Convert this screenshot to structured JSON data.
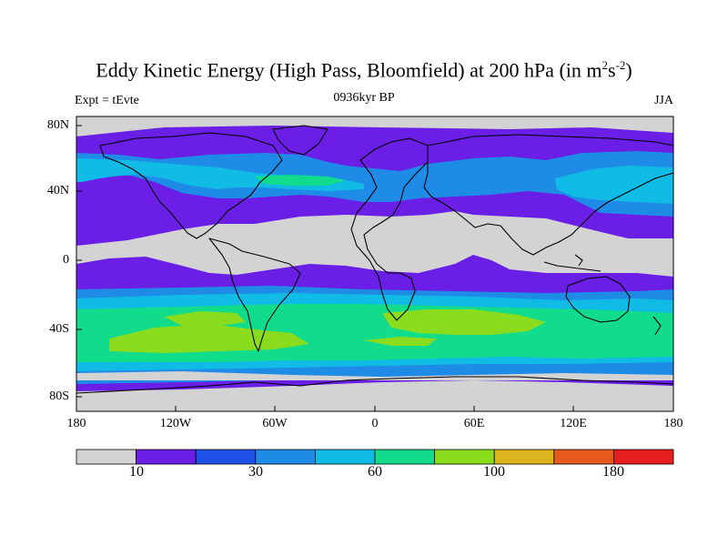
{
  "title": {
    "main": "Eddy Kinetic Energy (High Pass, Bloomfield) at 200 hPa (in m",
    "sup1": "2",
    "mid": "s",
    "sup2": "-2",
    "close": ")"
  },
  "subtitle": "0936kyr BP",
  "experiment": "Expt = tEvte",
  "season": "JJA",
  "map": {
    "lat_labels": [
      "80N",
      "40N",
      "0",
      "40S",
      "80S"
    ],
    "lon_labels": [
      "180",
      "120W",
      "60W",
      "0",
      "60E",
      "120E",
      "180"
    ],
    "frame_color": "#000000",
    "coastline_color": "#000000"
  },
  "colorbar": {
    "colors": [
      "#d3d3d3",
      "#6a1ee6",
      "#1e50e6",
      "#1e8ce6",
      "#10bce6",
      "#10dc8c",
      "#8cdc1e",
      "#dcb41e",
      "#e65a1e",
      "#e61e1e"
    ],
    "labels": [
      "10",
      "30",
      "60",
      "100",
      "180"
    ]
  }
}
